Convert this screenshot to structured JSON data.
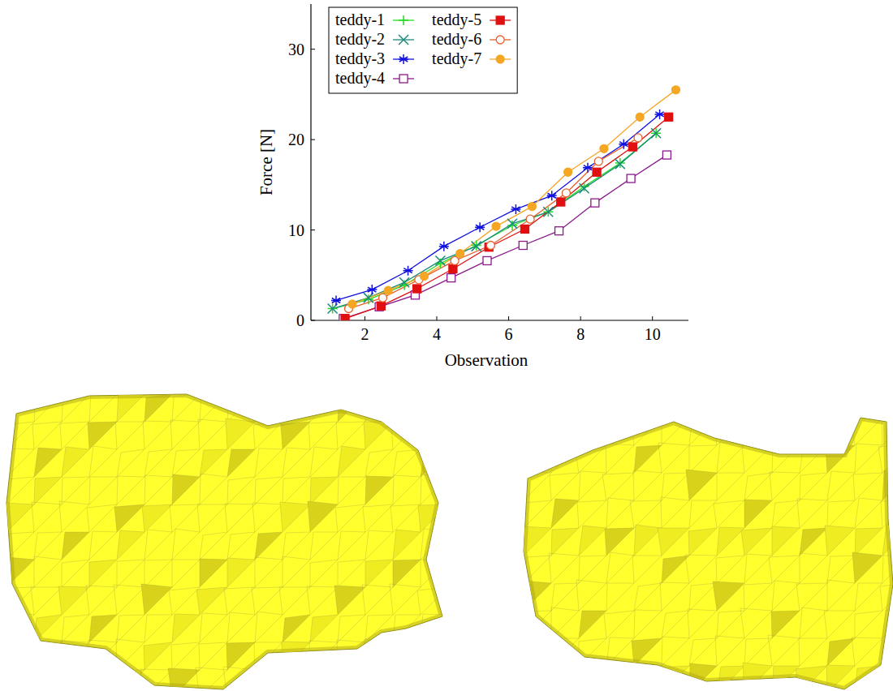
{
  "chart_data": {
    "type": "line",
    "x_label": "Observation",
    "y_label": "Force [N]",
    "xlim": [
      0.5,
      11
    ],
    "ylim": [
      0,
      35
    ],
    "xticks": [
      2,
      4,
      6,
      8,
      10
    ],
    "yticks": [
      0,
      10,
      20,
      30
    ],
    "grid": false,
    "legend": "upper left",
    "series": [
      {
        "name": "teddy-1",
        "color": "#22dd22",
        "marker": "plus",
        "line_style": "solid",
        "x": [
          1.1,
          2.1,
          3.1,
          4.1,
          5.1,
          6.1,
          7.1,
          8.1,
          9.1,
          10.1
        ],
        "values": [
          1.3,
          2.3,
          3.9,
          6.3,
          8.3,
          10.5,
          12.0,
          14.8,
          17.4,
          20.7
        ]
      },
      {
        "name": "teddy-2",
        "color": "#1a8a7a",
        "marker": "cross",
        "line_style": "solid",
        "x": [
          1.1,
          2.1,
          3.1,
          4.1,
          5.1,
          6.1,
          7.1,
          8.1,
          9.1,
          10.1
        ],
        "values": [
          1.3,
          2.5,
          4.2,
          6.6,
          8.2,
          10.7,
          12.0,
          14.6,
          17.3,
          20.7
        ]
      },
      {
        "name": "teddy-3",
        "color": "#1010e0",
        "marker": "star",
        "line_style": "solid",
        "x": [
          1.2,
          2.2,
          3.2,
          4.2,
          5.2,
          6.2,
          7.2,
          8.2,
          9.2,
          10.2
        ],
        "values": [
          2.2,
          3.4,
          5.5,
          8.2,
          10.3,
          12.3,
          13.8,
          16.9,
          19.5,
          22.8
        ]
      },
      {
        "name": "teddy-4",
        "color": "#8b1a8b",
        "marker": "square-open",
        "line_style": "solid",
        "x": [
          1.4,
          2.4,
          3.4,
          4.4,
          5.4,
          6.4,
          7.4,
          8.4,
          9.4,
          10.4
        ],
        "values": [
          0.2,
          1.5,
          2.8,
          4.7,
          6.6,
          8.3,
          9.9,
          13.0,
          15.7,
          18.3
        ]
      },
      {
        "name": "teddy-5",
        "color": "#e01010",
        "marker": "square",
        "line_style": "solid",
        "x": [
          1.45,
          2.45,
          3.45,
          4.45,
          5.45,
          6.45,
          7.45,
          8.45,
          9.45,
          10.45
        ],
        "values": [
          0.2,
          1.6,
          3.5,
          5.7,
          8.1,
          10.1,
          13.1,
          16.4,
          19.2,
          22.5
        ]
      },
      {
        "name": "teddy-6",
        "color": "#e8602c",
        "marker": "circle-open",
        "line_style": "solid",
        "x": [
          1.55,
          2.5,
          3.5,
          4.5,
          5.5,
          6.6,
          7.6,
          8.5,
          9.6
        ],
        "values": [
          1.3,
          2.5,
          4.5,
          6.6,
          8.3,
          11.2,
          14.1,
          17.6,
          20.2
        ]
      },
      {
        "name": "teddy-7",
        "color": "#f5a623",
        "marker": "circle",
        "line_style": "solid",
        "x": [
          1.65,
          2.65,
          3.65,
          4.65,
          5.65,
          6.65,
          7.65,
          8.65,
          9.65,
          10.65
        ],
        "values": [
          1.8,
          3.3,
          4.9,
          7.4,
          10.4,
          12.6,
          16.4,
          19.0,
          22.5,
          25.5
        ]
      }
    ]
  }
}
